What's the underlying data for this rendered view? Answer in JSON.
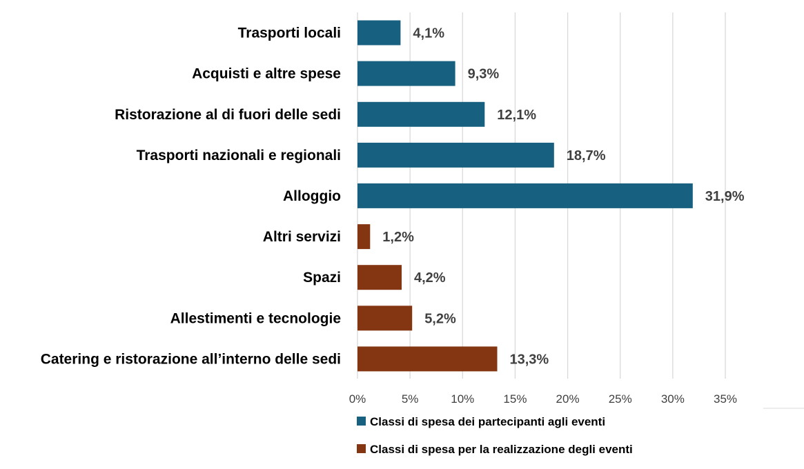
{
  "chart_data": {
    "type": "bar",
    "orientation": "horizontal",
    "title": "",
    "xlabel": "",
    "ylabel": "",
    "xlim": [
      0,
      35
    ],
    "x_ticks": [
      "0%",
      "5%",
      "10%",
      "15%",
      "20%",
      "25%",
      "30%",
      "35%"
    ],
    "grid": true,
    "legend_position": "bottom",
    "categories": [
      "Trasporti locali",
      "Acquisti e altre spese",
      "Ristorazione al di fuori delle sedi",
      "Trasporti nazionali e regionali",
      "Alloggio",
      "Altri servizi",
      "Spazi",
      "Allestimenti e tecnologie",
      "Catering e ristorazione all’interno delle sedi"
    ],
    "values": [
      4.1,
      9.3,
      12.1,
      18.7,
      31.9,
      1.2,
      4.2,
      5.2,
      13.3
    ],
    "value_labels": [
      "4,1%",
      "9,3%",
      "12,1%",
      "18,7%",
      "31,9%",
      "1,2%",
      "4,2%",
      "5,2%",
      "13,3%"
    ],
    "series_index": [
      0,
      0,
      0,
      0,
      0,
      1,
      1,
      1,
      1
    ],
    "series": [
      {
        "name": "Classi di spesa dei partecipanti agli eventi",
        "color": "#17607f"
      },
      {
        "name": "Classi di spesa per la realizzazione degli eventi",
        "color": "#843511"
      }
    ]
  }
}
